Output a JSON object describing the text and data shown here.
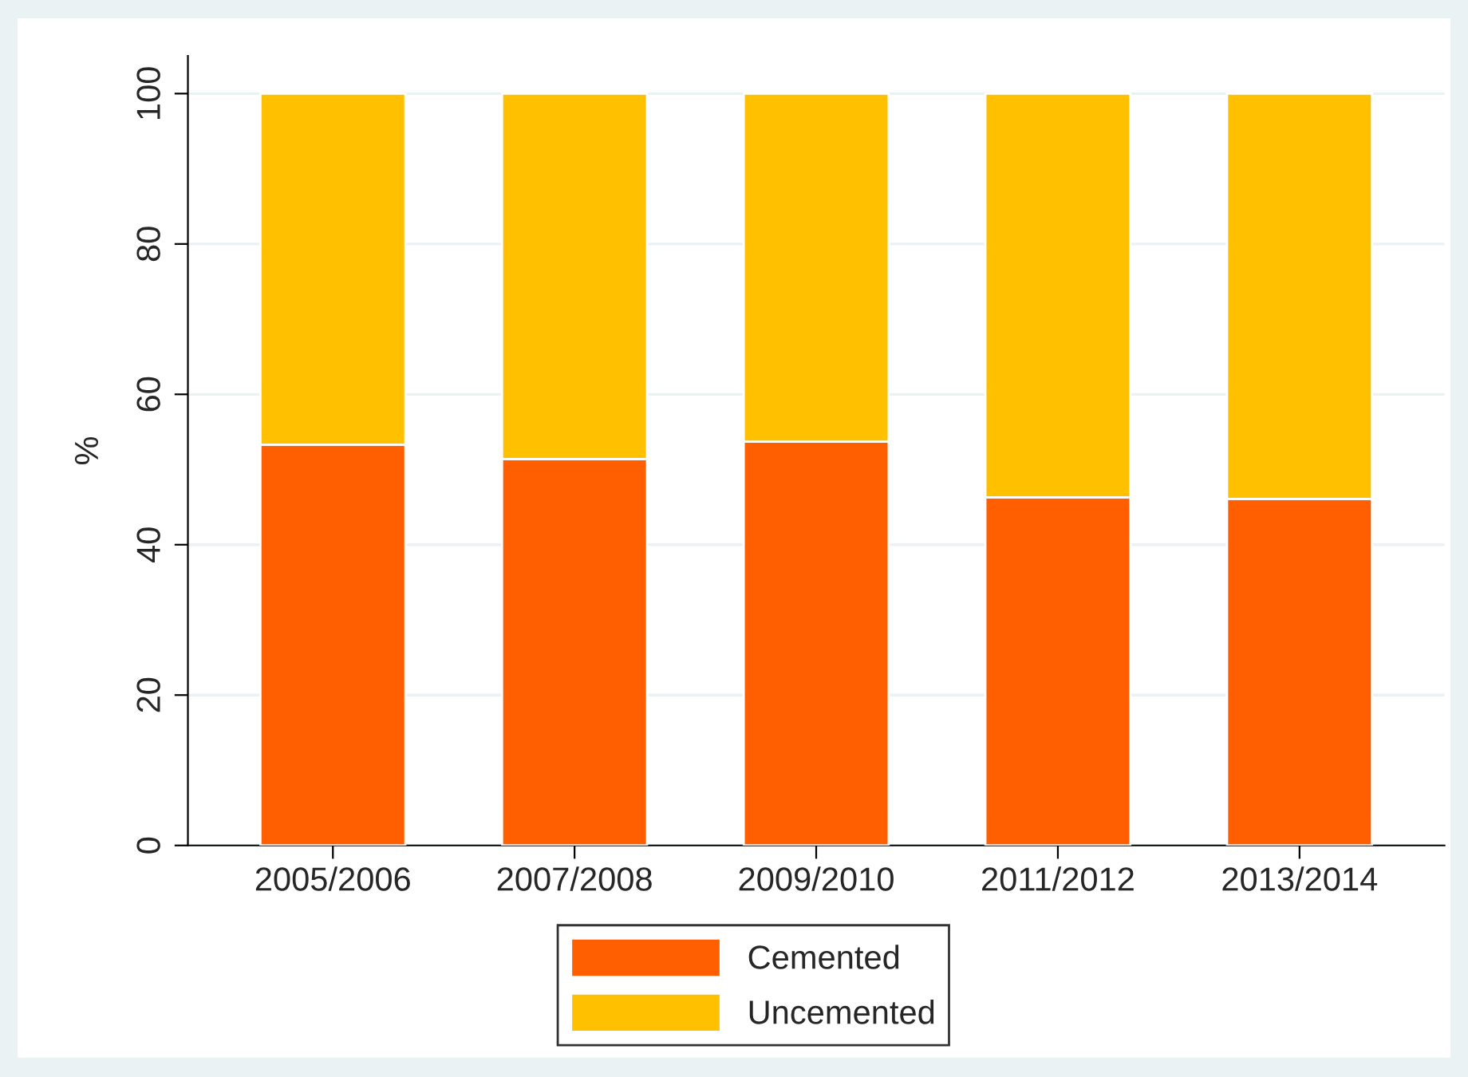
{
  "chart_data": {
    "type": "bar",
    "stacked": true,
    "ylabel": "%",
    "categories": [
      "2005/2006",
      "2007/2008",
      "2009/2010",
      "2011/2012",
      "2013/2014"
    ],
    "series": [
      {
        "name": "Cemented",
        "color": "#ff5f00",
        "values": [
          53.3,
          51.4,
          53.7,
          46.3,
          46.1
        ]
      },
      {
        "name": "Uncemented",
        "color": "#ffc000",
        "values": [
          46.7,
          48.6,
          46.3,
          53.7,
          53.9
        ]
      }
    ],
    "ylim": [
      0,
      105
    ],
    "yticks": [
      0,
      20,
      40,
      60,
      80,
      100
    ],
    "grid": "y",
    "legend": "bottom"
  }
}
